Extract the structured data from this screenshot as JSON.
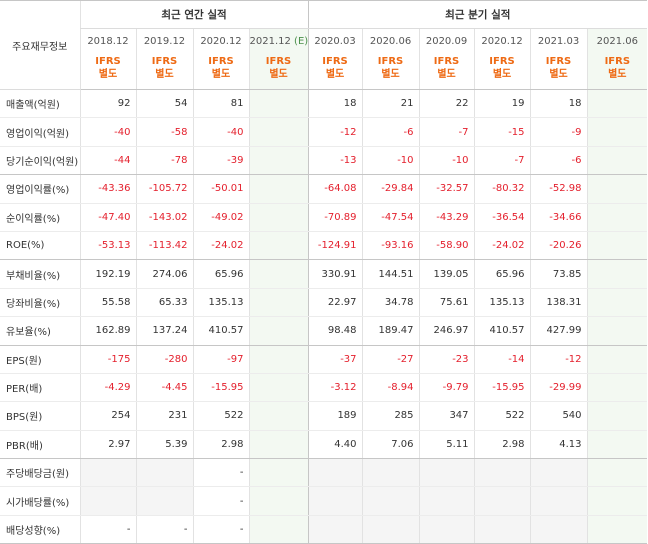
{
  "header": {
    "label_col": "주요재무정보",
    "annual_group": "최근 연간 실적",
    "quarter_group": "최근 분기 실적",
    "periods": [
      "2018.12",
      "2019.12",
      "2020.12",
      "2021.12",
      "2020.03",
      "2020.06",
      "2020.09",
      "2020.12",
      "2021.03",
      "2021.06"
    ],
    "estimate_badge": "(E)",
    "ifrs_line1": "IFRS",
    "ifrs_line2": "별도"
  },
  "rows": [
    {
      "label": "매출액(억원)",
      "values": [
        "92",
        "54",
        "81",
        "",
        "18",
        "21",
        "22",
        "19",
        "18",
        ""
      ]
    },
    {
      "label": "영업이익(억원)",
      "values": [
        "-40",
        "-58",
        "-40",
        "",
        "-12",
        "-6",
        "-7",
        "-15",
        "-9",
        ""
      ]
    },
    {
      "label": "당기순이익(억원)",
      "values": [
        "-44",
        "-78",
        "-39",
        "",
        "-13",
        "-10",
        "-10",
        "-7",
        "-6",
        ""
      ]
    },
    {
      "label": "영업이익률(%)",
      "values": [
        "-43.36",
        "-105.72",
        "-50.01",
        "",
        "-64.08",
        "-29.84",
        "-32.57",
        "-80.32",
        "-52.98",
        ""
      ]
    },
    {
      "label": "순이익률(%)",
      "values": [
        "-47.40",
        "-143.02",
        "-49.02",
        "",
        "-70.89",
        "-47.54",
        "-43.29",
        "-36.54",
        "-34.66",
        ""
      ]
    },
    {
      "label": "ROE(%)",
      "values": [
        "-53.13",
        "-113.42",
        "-24.02",
        "",
        "-124.91",
        "-93.16",
        "-58.90",
        "-24.02",
        "-20.26",
        ""
      ]
    },
    {
      "label": "부채비율(%)",
      "values": [
        "192.19",
        "274.06",
        "65.96",
        "",
        "330.91",
        "144.51",
        "139.05",
        "65.96",
        "73.85",
        ""
      ]
    },
    {
      "label": "당좌비율(%)",
      "values": [
        "55.58",
        "65.33",
        "135.13",
        "",
        "22.97",
        "34.78",
        "75.61",
        "135.13",
        "138.31",
        ""
      ]
    },
    {
      "label": "유보율(%)",
      "values": [
        "162.89",
        "137.24",
        "410.57",
        "",
        "98.48",
        "189.47",
        "246.97",
        "410.57",
        "427.99",
        ""
      ]
    },
    {
      "label": "EPS(원)",
      "values": [
        "-175",
        "-280",
        "-97",
        "",
        "-37",
        "-27",
        "-23",
        "-14",
        "-12",
        ""
      ]
    },
    {
      "label": "PER(배)",
      "values": [
        "-4.29",
        "-4.45",
        "-15.95",
        "",
        "-3.12",
        "-8.94",
        "-9.79",
        "-15.95",
        "-29.99",
        ""
      ]
    },
    {
      "label": "BPS(원)",
      "values": [
        "254",
        "231",
        "522",
        "",
        "189",
        "285",
        "347",
        "522",
        "540",
        ""
      ]
    },
    {
      "label": "PBR(배)",
      "values": [
        "2.97",
        "5.39",
        "2.98",
        "",
        "4.40",
        "7.06",
        "5.11",
        "2.98",
        "4.13",
        ""
      ]
    },
    {
      "label": "주당배당금(원)",
      "values": [
        "",
        "",
        "-",
        "",
        "",
        "",
        "",
        "",
        "",
        ""
      ]
    },
    {
      "label": "시가배당률(%)",
      "values": [
        "",
        "",
        "-",
        "",
        "",
        "",
        "",
        "",
        "",
        ""
      ]
    },
    {
      "label": "배당성향(%)",
      "values": [
        "-",
        "-",
        "-",
        "",
        "",
        "",
        "",
        "",
        "",
        ""
      ]
    }
  ],
  "colors": {
    "negative": "#e4202d",
    "ifrs": "#ee6a14",
    "estimate_bg": "#f3f9f2",
    "estimate_text": "#4a8f4a"
  }
}
